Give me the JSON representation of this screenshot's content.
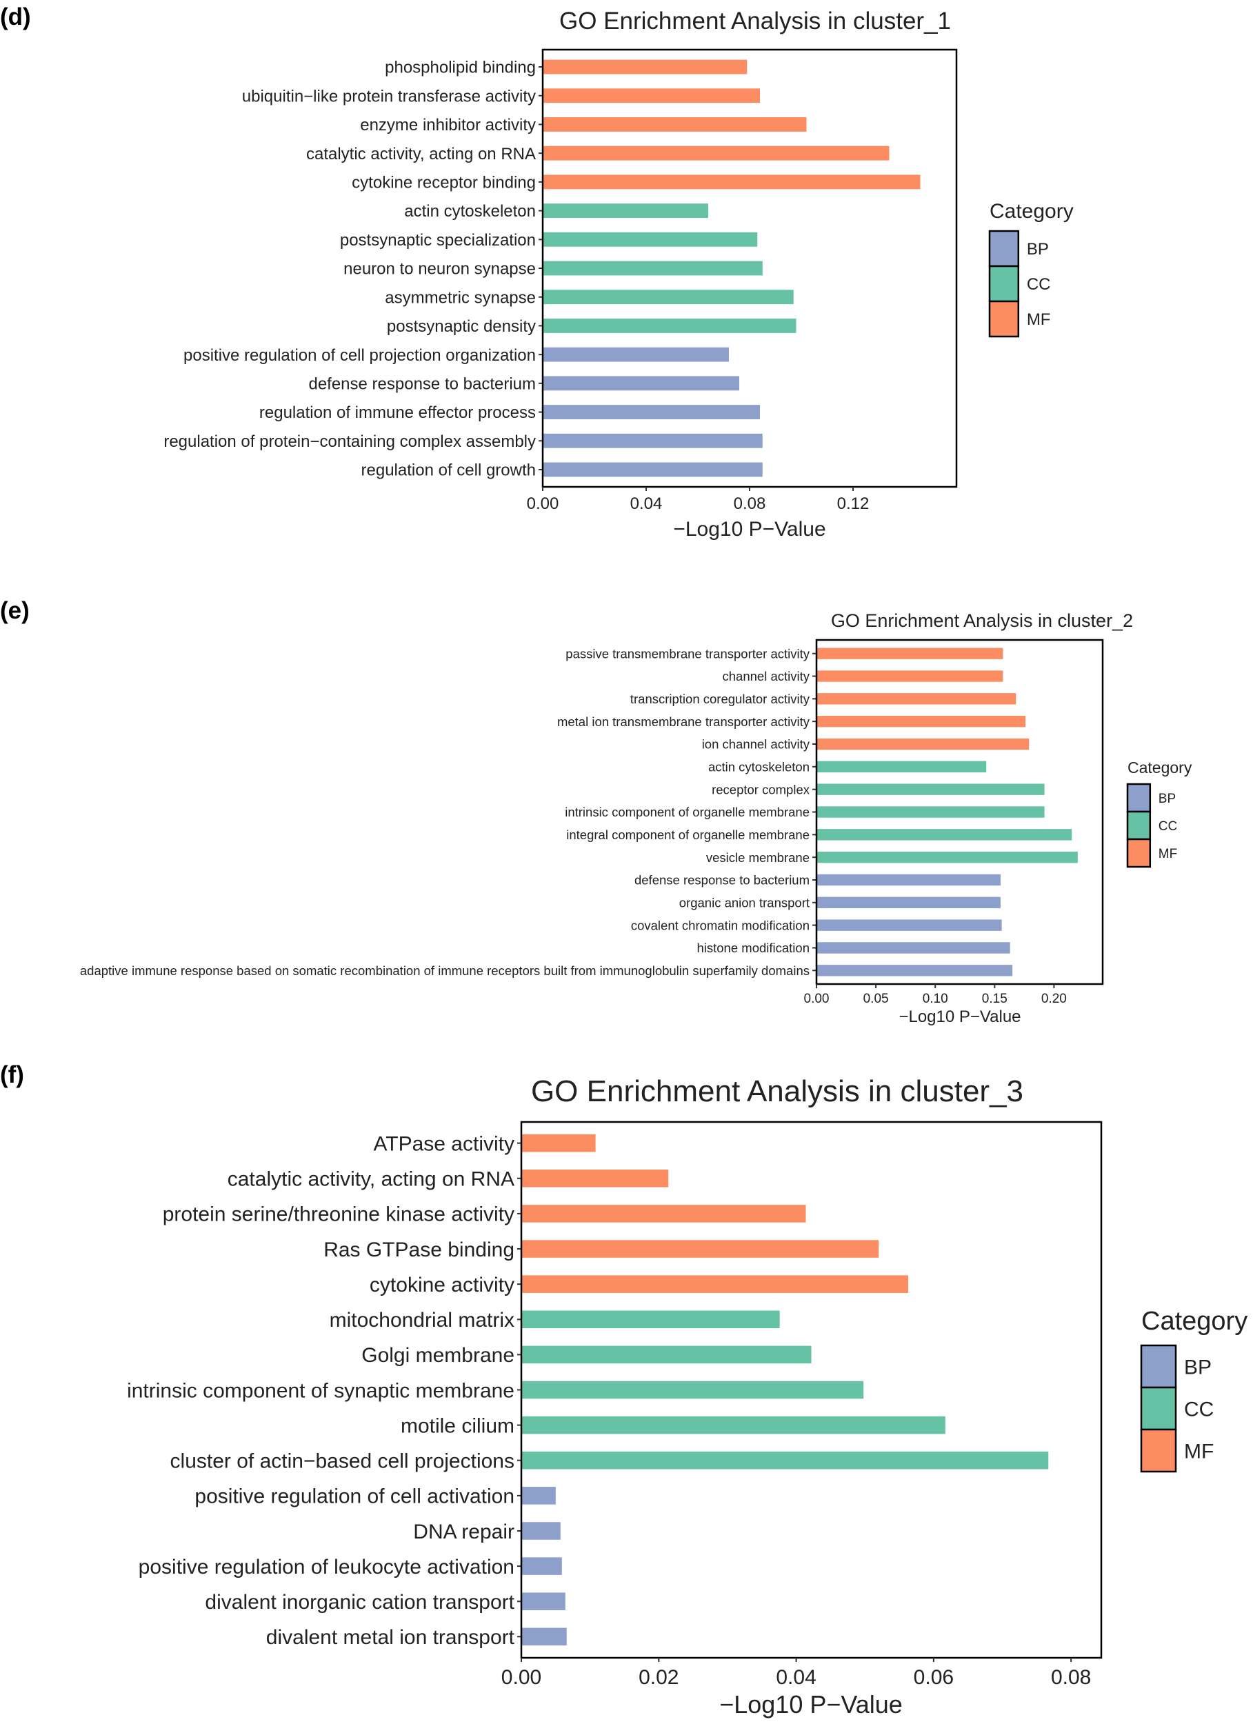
{
  "legend_colors": {
    "BP": "#8DA0CB",
    "CC": "#66C2A5",
    "MF": "#FC8D62"
  },
  "chart_data": [
    {
      "type": "bar",
      "orientation": "horizontal",
      "panel_label": "(d)",
      "title": "GO Enrichment Analysis in cluster_1",
      "xlabel": "−Log10 P−Value",
      "ylabel": "",
      "xlim": [
        0,
        0.16
      ],
      "xticks": [
        "0.00",
        "0.04",
        "0.08",
        "0.12"
      ],
      "xtick_values": [
        0,
        0.04,
        0.08,
        0.12
      ],
      "grid": false,
      "legend": {
        "title": "Category",
        "entries": [
          "BP",
          "CC",
          "MF"
        ],
        "placement": "right"
      },
      "categories": [
        "phospholipid binding",
        "ubiquitin−like protein transferase activity",
        "enzyme inhibitor activity",
        "catalytic activity, acting on RNA",
        "cytokine receptor binding",
        "actin cytoskeleton",
        "postsynaptic specialization",
        "neuron to neuron synapse",
        "asymmetric synapse",
        "postsynaptic density",
        "positive regulation of cell projection organization",
        "defense response to bacterium",
        "regulation of immune effector process",
        "regulation of protein−containing complex assembly",
        "regulation of cell growth"
      ],
      "groups": [
        "MF",
        "MF",
        "MF",
        "MF",
        "MF",
        "CC",
        "CC",
        "CC",
        "CC",
        "CC",
        "BP",
        "BP",
        "BP",
        "BP",
        "BP"
      ],
      "values": [
        0.079,
        0.084,
        0.102,
        0.134,
        0.146,
        0.064,
        0.083,
        0.085,
        0.097,
        0.098,
        0.072,
        0.076,
        0.084,
        0.085,
        0.085
      ]
    },
    {
      "type": "bar",
      "orientation": "horizontal",
      "panel_label": "(e)",
      "title": "GO Enrichment Analysis in cluster_2",
      "xlabel": "−Log10 P−Value",
      "ylabel": "",
      "xlim": [
        0,
        0.241
      ],
      "xticks": [
        "0.00",
        "0.05",
        "0.10",
        "0.15",
        "0.20"
      ],
      "xtick_values": [
        0,
        0.05,
        0.1,
        0.15,
        0.2
      ],
      "grid": false,
      "legend": {
        "title": "Category",
        "entries": [
          "BP",
          "CC",
          "MF"
        ],
        "placement": "right"
      },
      "categories": [
        "passive transmembrane transporter activity",
        "channel activity",
        "transcription coregulator activity",
        "metal ion transmembrane transporter activity",
        "ion channel activity",
        "actin cytoskeleton",
        "receptor complex",
        "intrinsic component of organelle membrane",
        "integral component of organelle membrane",
        "vesicle membrane",
        "defense response to bacterium",
        "organic anion transport",
        "covalent chromatin modification",
        "histone modification",
        "adaptive immune response based on somatic recombination of immune receptors built from immunoglobulin superfamily domains"
      ],
      "groups": [
        "MF",
        "MF",
        "MF",
        "MF",
        "MF",
        "CC",
        "CC",
        "CC",
        "CC",
        "CC",
        "BP",
        "BP",
        "BP",
        "BP",
        "BP"
      ],
      "values": [
        0.157,
        0.157,
        0.168,
        0.176,
        0.179,
        0.143,
        0.192,
        0.192,
        0.215,
        0.22,
        0.155,
        0.155,
        0.156,
        0.163,
        0.165
      ]
    },
    {
      "type": "bar",
      "orientation": "horizontal",
      "panel_label": "(f)",
      "title": "GO Enrichment Analysis in cluster_3",
      "xlabel": "−Log10 P−Value",
      "ylabel": "",
      "xlim": [
        0,
        0.0844
      ],
      "xticks": [
        "0.00",
        "0.02",
        "0.04",
        "0.06",
        "0.08"
      ],
      "xtick_values": [
        0,
        0.02,
        0.04,
        0.06,
        0.08
      ],
      "grid": false,
      "legend": {
        "title": "Category",
        "entries": [
          "BP",
          "CC",
          "MF"
        ],
        "placement": "right"
      },
      "categories": [
        "ATPase activity",
        "catalytic activity, acting on RNA",
        "protein serine/threonine kinase activity",
        "Ras GTPase binding",
        "cytokine activity",
        "mitochondrial matrix",
        "Golgi membrane",
        "intrinsic component of synaptic membrane",
        "motile cilium",
        "cluster of actin−based cell projections",
        "positive regulation of cell activation",
        "DNA repair",
        "positive regulation of leukocyte activation",
        "divalent inorganic cation transport",
        "divalent metal ion transport"
      ],
      "groups": [
        "MF",
        "MF",
        "MF",
        "MF",
        "MF",
        "CC",
        "CC",
        "CC",
        "CC",
        "CC",
        "BP",
        "BP",
        "BP",
        "BP",
        "BP"
      ],
      "values": [
        0.0108,
        0.0214,
        0.0414,
        0.052,
        0.0563,
        0.0376,
        0.0422,
        0.0498,
        0.0617,
        0.0767,
        0.005,
        0.0057,
        0.0059,
        0.0064,
        0.0066
      ]
    }
  ]
}
